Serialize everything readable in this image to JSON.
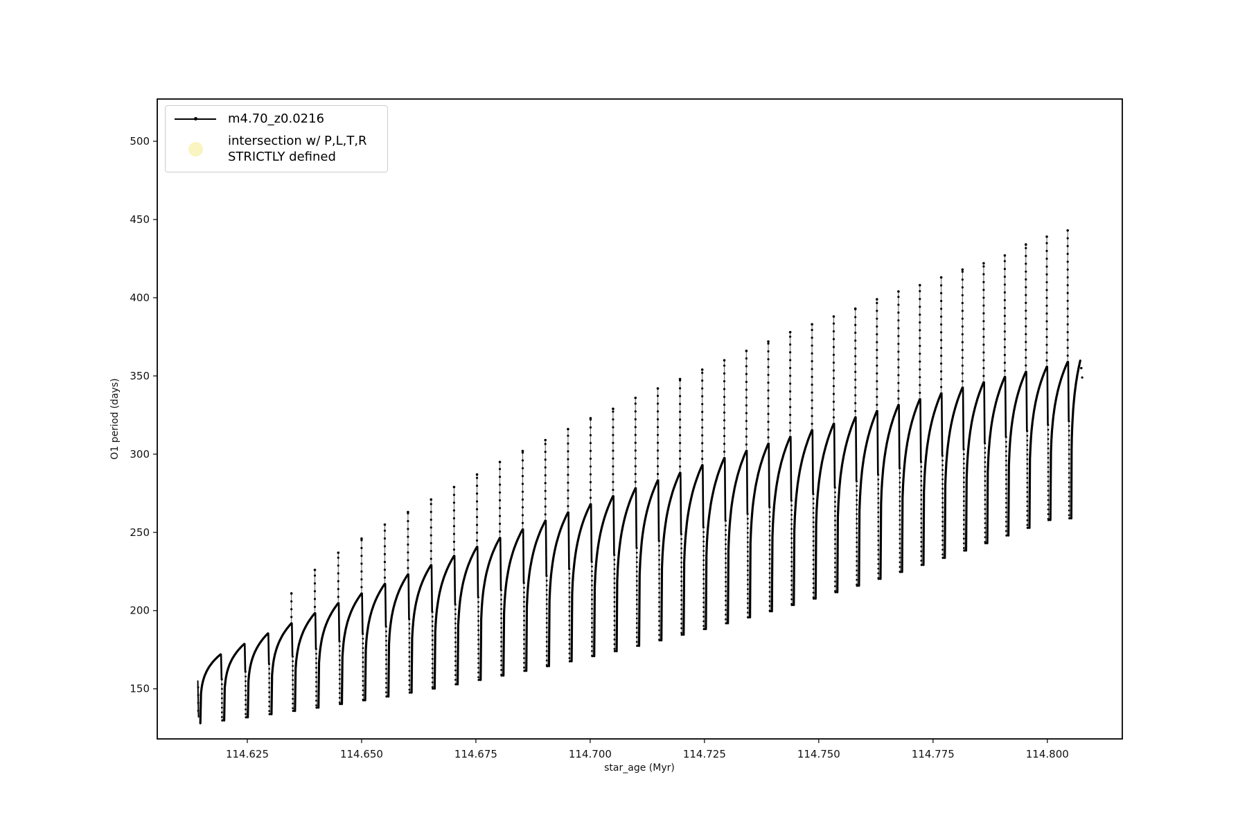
{
  "figure": {
    "background": "#ffffff",
    "curve_color": "#000000",
    "axis_color": "#000000"
  },
  "legend": {
    "border_color": "#cccccc",
    "entries": [
      {
        "label": "m4.70_z0.0216",
        "marker": "line-with-dot",
        "color": "#000000"
      },
      {
        "label": "intersection w/ P,L,T,R\nSTRICTLY defined",
        "marker": "circle",
        "color": "#f9f4c0"
      }
    ]
  },
  "chart_data": {
    "type": "line",
    "title": "",
    "xlabel": "star_age (Myr)",
    "ylabel": "O1 period (days)",
    "xlim": [
      114.6053,
      114.8164
    ],
    "ylim": [
      118,
      527
    ],
    "grid": false,
    "legend_position": "upper-left",
    "xticks": [
      114.625,
      114.65,
      114.675,
      114.7,
      114.725,
      114.75,
      114.775,
      114.8
    ],
    "xtick_labels": [
      "114.625",
      "114.650",
      "114.675",
      "114.700",
      "114.725",
      "114.750",
      "114.775",
      "114.800"
    ],
    "yticks": [
      150,
      200,
      250,
      300,
      350,
      400,
      450,
      500
    ],
    "ytick_labels": [
      "150",
      "200",
      "250",
      "300",
      "350",
      "400",
      "450",
      "500"
    ],
    "series": [
      {
        "name": "m4.70_z0.0216",
        "color": "#000000",
        "marker": "point",
        "structure": "quasi-periodic relaxation oscillations: each cycle rises steeply from a sharp minimum, arcs over to a rounded top, emits a narrow vertical spike at the cycle end, then collapses to the next minimum",
        "first_point": {
          "age": 114.6144,
          "period": 155
        },
        "cycles": [
          {
            "age": 114.6144,
            "min": 128.0,
            "top": 172.0,
            "spike": null
          },
          {
            "age": 114.6196,
            "min": 129.8,
            "top": 178.7,
            "spike": null
          },
          {
            "age": 114.62478,
            "min": 131.8,
            "top": 185.4,
            "spike": null
          },
          {
            "age": 114.62995,
            "min": 133.8,
            "top": 191.9,
            "spike": 211
          },
          {
            "age": 114.6351,
            "min": 135.9,
            "top": 198.4,
            "spike": 226
          },
          {
            "age": 114.64023,
            "min": 138.0,
            "top": 204.8,
            "spike": 237
          },
          {
            "age": 114.64535,
            "min": 140.3,
            "top": 211.0,
            "spike": 246
          },
          {
            "age": 114.65045,
            "min": 142.7,
            "top": 217.1,
            "spike": 255
          },
          {
            "age": 114.65553,
            "min": 145.1,
            "top": 223.2,
            "spike": 263
          },
          {
            "age": 114.6606,
            "min": 147.6,
            "top": 229.1,
            "spike": 271
          },
          {
            "age": 114.66565,
            "min": 150.2,
            "top": 235.0,
            "spike": 279
          },
          {
            "age": 114.67068,
            "min": 152.9,
            "top": 240.8,
            "spike": 287
          },
          {
            "age": 114.6757,
            "min": 155.7,
            "top": 246.5,
            "spike": 295
          },
          {
            "age": 114.6807,
            "min": 158.5,
            "top": 252.0,
            "spike": 302
          },
          {
            "age": 114.68569,
            "min": 161.5,
            "top": 257.5,
            "spike": 309
          },
          {
            "age": 114.69065,
            "min": 164.5,
            "top": 262.8,
            "spike": 316
          },
          {
            "age": 114.69561,
            "min": 167.6,
            "top": 268.1,
            "spike": 323
          },
          {
            "age": 114.70054,
            "min": 170.9,
            "top": 273.2,
            "spike": 329
          },
          {
            "age": 114.70546,
            "min": 174.1,
            "top": 278.3,
            "spike": 336
          },
          {
            "age": 114.71036,
            "min": 177.5,
            "top": 283.3,
            "spike": 342
          },
          {
            "age": 114.71525,
            "min": 181.0,
            "top": 288.1,
            "spike": 348
          },
          {
            "age": 114.72011,
            "min": 184.6,
            "top": 293.0,
            "spike": 354
          },
          {
            "age": 114.72497,
            "min": 188.2,
            "top": 297.6,
            "spike": 360
          },
          {
            "age": 114.7298,
            "min": 191.9,
            "top": 302.2,
            "spike": 366
          },
          {
            "age": 114.73462,
            "min": 195.7,
            "top": 306.7,
            "spike": 372
          },
          {
            "age": 114.73942,
            "min": 199.6,
            "top": 311.1,
            "spike": 378
          },
          {
            "age": 114.74421,
            "min": 203.6,
            "top": 315.4,
            "spike": 383
          },
          {
            "age": 114.74898,
            "min": 207.7,
            "top": 319.5,
            "spike": 388
          },
          {
            "age": 114.75373,
            "min": 211.8,
            "top": 323.6,
            "spike": 393
          },
          {
            "age": 114.75846,
            "min": 215.9,
            "top": 327.6,
            "spike": 399
          },
          {
            "age": 114.76318,
            "min": 220.3,
            "top": 331.5,
            "spike": 404
          },
          {
            "age": 114.76789,
            "min": 224.7,
            "top": 335.2,
            "spike": 408
          },
          {
            "age": 114.77257,
            "min": 229.2,
            "top": 338.9,
            "spike": 413
          },
          {
            "age": 114.77724,
            "min": 233.7,
            "top": 342.6,
            "spike": 418
          },
          {
            "age": 114.7819,
            "min": 238.4,
            "top": 346.0,
            "spike": 422
          },
          {
            "age": 114.78653,
            "min": 243.1,
            "top": 349.4,
            "spike": 427
          },
          {
            "age": 114.79115,
            "min": 248.0,
            "top": 352.7,
            "spike": 434
          },
          {
            "age": 114.79576,
            "min": 252.9,
            "top": 355.9,
            "spike": 439
          },
          {
            "age": 114.80034,
            "min": 257.9,
            "top": 359.0,
            "spike": 443
          }
        ],
        "final_arch": {
          "age_start": 114.80491,
          "age_end": 114.8072,
          "min": 259,
          "end": 358
        }
      },
      {
        "name": "intersection w/ P,L,T,R STRICTLY defined",
        "color": "#f9f4c0",
        "marker": "circle",
        "points": []
      }
    ]
  }
}
